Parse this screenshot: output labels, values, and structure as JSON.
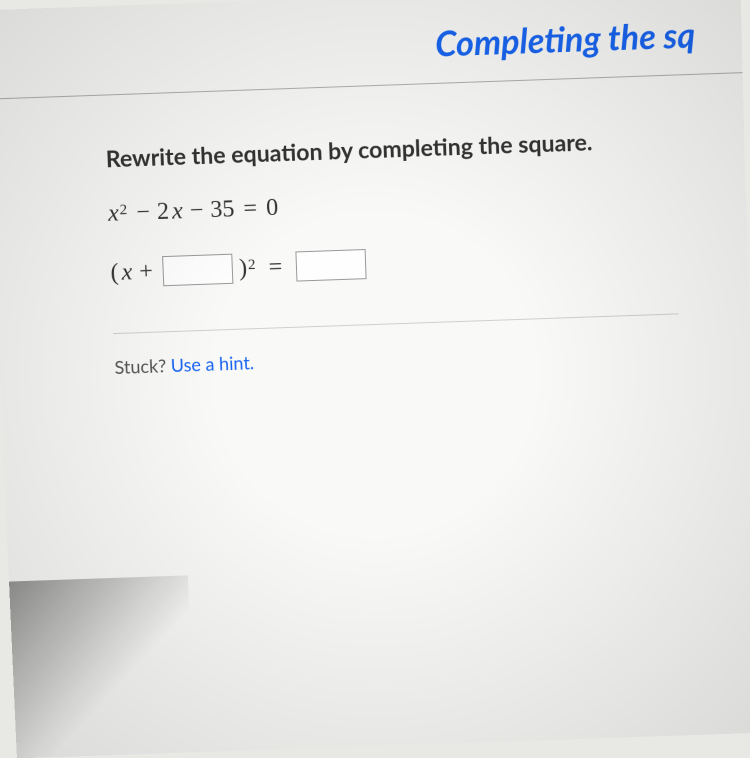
{
  "header": {
    "title": "Completing the sq"
  },
  "problem": {
    "instruction": "Rewrite the equation by completing the square.",
    "equation": {
      "variable": "x",
      "coeff_sq_exp": "2",
      "term2_sign": "−",
      "term2_coeff": "2",
      "term3_sign": "−",
      "term3_value": "35",
      "equals": "=",
      "rhs": "0"
    },
    "template": {
      "open_paren": "(",
      "variable": "x",
      "plus": "+",
      "close_paren": ")",
      "exp": "2",
      "equals": "="
    }
  },
  "help": {
    "stuck_label": "Stuck? ",
    "hint_text": "Use a hint."
  },
  "styling": {
    "title_color": "#1865f2",
    "link_color": "#1865f2",
    "text_color": "#333333",
    "background": "#f9f9f7",
    "border_color": "#b0b0b0",
    "input_border": "#999999",
    "title_fontsize": 34,
    "instruction_fontsize": 23,
    "math_fontsize": 24,
    "help_fontsize": 18
  }
}
